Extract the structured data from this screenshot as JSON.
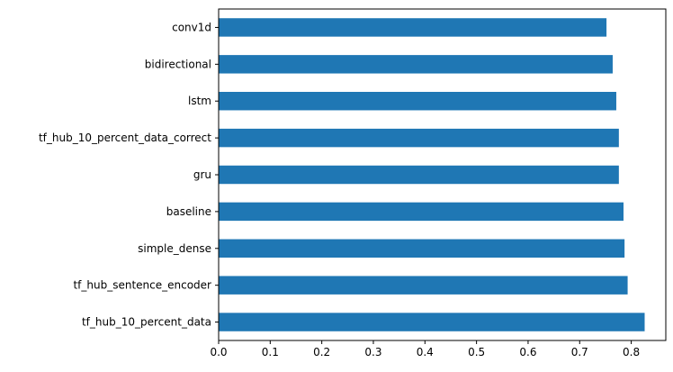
{
  "chart_data": {
    "type": "bar",
    "orientation": "horizontal",
    "categories": [
      "conv1d",
      "bidirectional",
      "lstm",
      "tf_hub_10_percent_data_correct",
      "gru",
      "baseline",
      "simple_dense",
      "tf_hub_sentence_encoder",
      "tf_hub_10_percent_data"
    ],
    "values": [
      0.752,
      0.764,
      0.771,
      0.776,
      0.776,
      0.785,
      0.787,
      0.793,
      0.826
    ],
    "xlim": [
      0,
      0.867
    ],
    "x_ticks": [
      "0.0",
      "0.1",
      "0.2",
      "0.3",
      "0.4",
      "0.5",
      "0.6",
      "0.7",
      "0.8"
    ],
    "bar_color": "#1f77b4",
    "grid": false,
    "legend": "none",
    "title": "",
    "xlabel": "",
    "ylabel": ""
  }
}
